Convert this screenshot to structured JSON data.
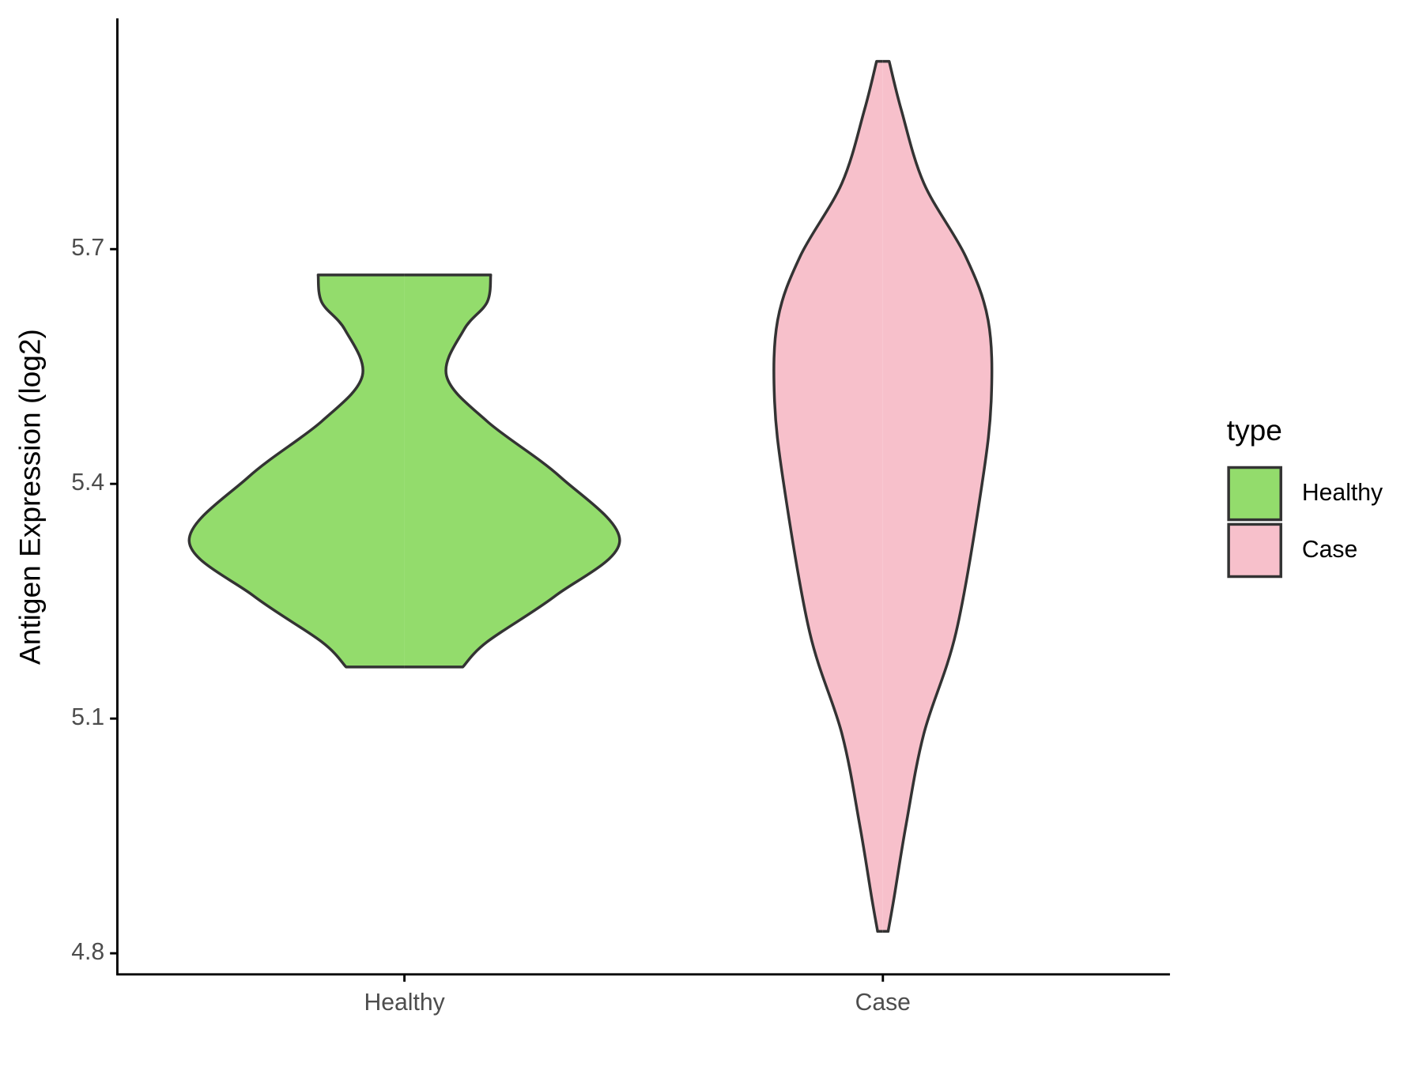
{
  "chart_data": {
    "type": "violin",
    "y_label": "Antigen Expression (log2)",
    "categories": [
      "Healthy",
      "Case"
    ],
    "legend_title": "type",
    "legend": "right",
    "ylim": [
      4.773,
      5.995
    ],
    "yticks": [
      4.8,
      5.1,
      5.4,
      5.7
    ],
    "series": [
      {
        "name": "Healthy",
        "color": "#93dc6c",
        "values": [
          5.667,
          5.632,
          5.597,
          5.538,
          5.48,
          5.409,
          5.327,
          5.257,
          5.198,
          5.166
        ],
        "widths": [
          0.164,
          0.157,
          0.113,
          0.08,
          0.157,
          0.296,
          0.409,
          0.287,
          0.157,
          0.111
        ]
      },
      {
        "name": "Case",
        "color": "#f7c0cb",
        "values": [
          5.94,
          5.878,
          5.784,
          5.691,
          5.609,
          5.509,
          5.398,
          5.21,
          5.081,
          4.964,
          4.87,
          4.828
        ],
        "widths": [
          0.012,
          0.035,
          0.078,
          0.157,
          0.2,
          0.206,
          0.188,
          0.139,
          0.078,
          0.044,
          0.021,
          0.01
        ]
      }
    ]
  }
}
